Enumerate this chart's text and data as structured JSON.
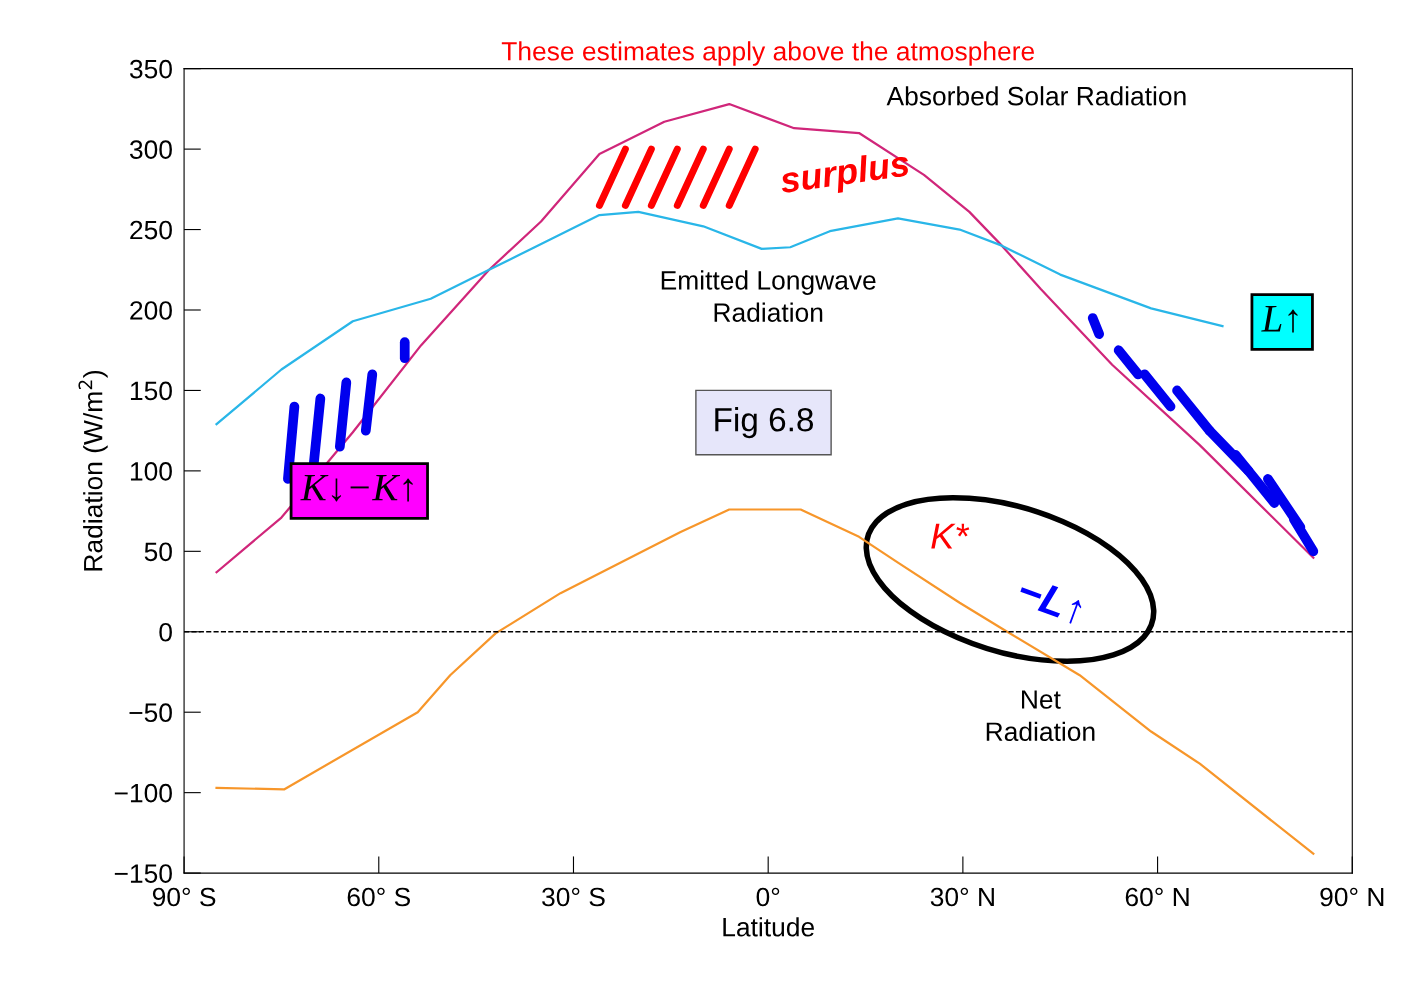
{
  "chart_data": {
    "type": "line",
    "title": "These estimates apply above the atmosphere",
    "xlabel": "Latitude",
    "ylabel": "Radiation (W/m$^{2}$)",
    "xlim": [
      -90,
      90
    ],
    "ylim": [
      -150,
      350
    ],
    "xticks": [
      {
        "value": -90,
        "label": "90° S"
      },
      {
        "value": -60,
        "label": "60° S"
      },
      {
        "value": -30,
        "label": "30° S"
      },
      {
        "value": 0,
        "label": "0°"
      },
      {
        "value": 30,
        "label": "30° N"
      },
      {
        "value": 60,
        "label": "60° N"
      },
      {
        "value": 90,
        "label": "90° N"
      }
    ],
    "yticks": [
      {
        "value": -150,
        "label": "−150"
      },
      {
        "value": -100,
        "label": "−100"
      },
      {
        "value": -50,
        "label": "−50"
      },
      0,
      50,
      100,
      150,
      200,
      250,
      300,
      350
    ],
    "grid": false,
    "legend": false,
    "marker": "none",
    "line_style": "solid",
    "series": [
      {
        "color": "#d0267a",
        "x": [
          -85,
          -75,
          -64,
          -53.5,
          -43,
          -35,
          -26,
          -16,
          -6,
          4,
          14,
          24,
          31,
          36,
          42,
          53,
          66.5,
          84
        ],
        "values": [
          37,
          71,
          124,
          178,
          225,
          255,
          297,
          317,
          328,
          313,
          310,
          284,
          261,
          240,
          213,
          166,
          116,
          46
        ]
      },
      {
        "color": "#29b6e8",
        "x": [
          -85,
          -75,
          -64,
          -52,
          -43,
          -37,
          -26,
          -20,
          -10,
          -1,
          3.4,
          9.5,
          20,
          29.5,
          36,
          45,
          59,
          70
        ],
        "values": [
          129,
          163,
          193,
          207,
          225,
          237,
          259,
          261,
          252,
          238,
          239,
          249,
          257,
          250,
          240,
          222,
          201,
          190
        ]
      },
      {
        "color": "#f7962a",
        "x": [
          -85,
          -74.6,
          -54,
          -49,
          -42,
          -32,
          -13.5,
          -6,
          5,
          14,
          20,
          29.5,
          36,
          48,
          59,
          66.5,
          84
        ],
        "values": [
          -97,
          -98,
          -50,
          -27,
          -1,
          24,
          62,
          76,
          76,
          59,
          43,
          18,
          2,
          -27,
          -62,
          -82,
          -138
        ]
      }
    ],
    "ref_lines": [
      {
        "axis": "y",
        "value": 0,
        "color": "#000000",
        "line_style": "dashed"
      }
    ],
    "annotations": [
      "Absorbed Solar Radiation",
      "Emitted Longwave\nRadiation",
      "Net\nRadiation",
      "Fig 6.8",
      "K↓−K↑",
      "L↑",
      "surplus",
      "K*",
      "−L↑"
    ]
  }
}
